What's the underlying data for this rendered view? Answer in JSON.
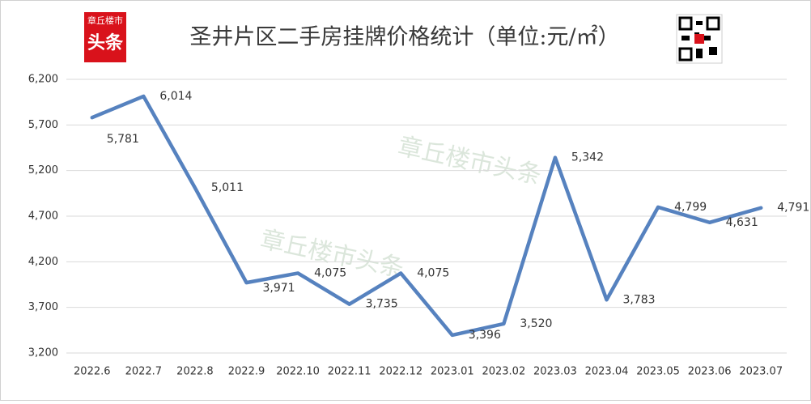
{
  "chart_data": {
    "type": "line",
    "title": "圣井片区二手房挂牌价格统计（单位:元/㎡）",
    "logo": {
      "top": "章丘楼市",
      "main": "头条"
    },
    "watermark": "章丘楼市头条",
    "categories": [
      "2022.6",
      "2022.7",
      "2022.8",
      "2022.9",
      "2022.10",
      "2022.11",
      "2022.12",
      "2023.01",
      "2023.02",
      "2023.03",
      "2023.04",
      "2023.05",
      "2023.06",
      "2023.07"
    ],
    "series": [
      {
        "name": "圣井片区",
        "color": "#5682bf",
        "values": [
          5781,
          6014,
          5011,
          3971,
          4075,
          3735,
          4075,
          3396,
          3520,
          5342,
          3783,
          4799,
          4631,
          4791
        ],
        "value_labels": [
          "5,781",
          "6,014",
          "5,011",
          "3,971",
          "4,075",
          "3,735",
          "4,075",
          "3,396",
          "3,520",
          "5,342",
          "3,783",
          "4,799",
          "4,631",
          "4,791"
        ]
      }
    ],
    "ylim": [
      3200,
      6200
    ],
    "yticks": [
      {
        "value": 3200,
        "label": "3,200"
      },
      {
        "value": 3700,
        "label": "3,700"
      },
      {
        "value": 4200,
        "label": "4,200"
      },
      {
        "value": 4700,
        "label": "4,700"
      },
      {
        "value": 5200,
        "label": "5,200"
      },
      {
        "value": 5700,
        "label": "5,700"
      },
      {
        "value": 6200,
        "label": "6,200"
      }
    ],
    "grid": true
  }
}
